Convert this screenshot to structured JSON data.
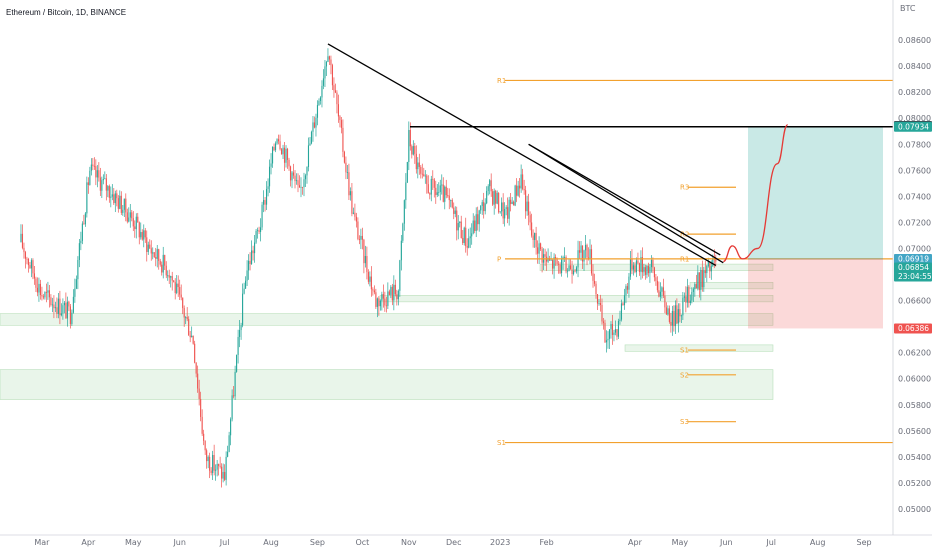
{
  "title": "Ethereum / Bitcoin, 1D, BINANCE",
  "chart_data": {
    "type": "candlestick",
    "title": "Ethereum / Bitcoin, 1D, BINANCE",
    "currency": "BTC",
    "ylim": [
      0.049,
      0.088
    ],
    "y_ticks": [
      "0.08600",
      "0.08400",
      "0.08200",
      "0.08000",
      "0.07800",
      "0.07600",
      "0.07400",
      "0.07200",
      "0.07000",
      "0.06800",
      "0.06600",
      "0.06400",
      "0.06200",
      "0.06000",
      "0.05800",
      "0.05600",
      "0.05400",
      "0.05200",
      "0.05000"
    ],
    "x_ticks": [
      "Mar",
      "Apr",
      "May",
      "Jun",
      "Jul",
      "Aug",
      "Sep",
      "Oct",
      "Nov",
      "Dec",
      "2023",
      "Feb",
      "Apr",
      "May",
      "Jun",
      "Jul",
      "Aug",
      "Sep"
    ],
    "price_path": {
      "dates": [
        "2022-02-15",
        "2022-03-01",
        "2022-03-20",
        "2022-04-02",
        "2022-04-15",
        "2022-05-01",
        "2022-05-12",
        "2022-05-25",
        "2022-06-10",
        "2022-06-18",
        "2022-07-01",
        "2022-07-15",
        "2022-07-25",
        "2022-08-05",
        "2022-08-20",
        "2022-09-01",
        "2022-09-08",
        "2022-09-15",
        "2022-09-25",
        "2022-10-10",
        "2022-10-25",
        "2022-11-01",
        "2022-11-10",
        "2022-11-25",
        "2022-12-10",
        "2022-12-25",
        "2023-01-05",
        "2023-01-15",
        "2023-01-22",
        "2023-02-01",
        "2023-02-15",
        "2023-03-01",
        "2023-03-12",
        "2023-03-20",
        "2023-03-30",
        "2023-04-12",
        "2023-04-20",
        "2023-04-26",
        "2023-05-10",
        "2023-05-25"
      ],
      "close": [
        0.0705,
        0.0665,
        0.065,
        0.076,
        0.0745,
        0.0722,
        0.07,
        0.0683,
        0.063,
        0.054,
        0.0525,
        0.068,
        0.072,
        0.079,
        0.074,
        0.081,
        0.0855,
        0.08,
        0.0725,
        0.066,
        0.0668,
        0.0785,
        0.075,
        0.074,
        0.0705,
        0.0745,
        0.0725,
        0.0755,
        0.071,
        0.069,
        0.0685,
        0.07,
        0.063,
        0.064,
        0.069,
        0.0685,
        0.066,
        0.0645,
        0.067,
        0.069
      ]
    },
    "last_price": "0.06854",
    "countdown": "23:04:55",
    "entry_price": "0.06919",
    "target_price": "0.07934",
    "stop_price": "0.06386",
    "crosshair_price": "0.07939",
    "pivots_major": [
      {
        "label": "R1",
        "value": 0.0829
      },
      {
        "label": "P",
        "value": 0.0692
      },
      {
        "label": "S1",
        "value": 0.0551
      }
    ],
    "pivots_minor": [
      {
        "label": "R3",
        "value": 0.0747
      },
      {
        "label": "R2",
        "value": 0.0711
      },
      {
        "label": "R1",
        "value": 0.0692
      },
      {
        "label": "S1",
        "value": 0.0622
      },
      {
        "label": "S2",
        "value": 0.0603
      },
      {
        "label": "S3",
        "value": 0.0567
      }
    ],
    "zones": [
      {
        "from": 0.0641,
        "to": 0.065
      },
      {
        "from": 0.0584,
        "to": 0.0607
      },
      {
        "from": 0.0659,
        "to": 0.0664
      },
      {
        "from": 0.0683,
        "to": 0.0688
      },
      {
        "from": 0.0669,
        "to": 0.0674
      },
      {
        "from": 0.0621,
        "to": 0.0626
      }
    ],
    "horizontal_resistance": 0.07934,
    "trendlines": [
      {
        "from": [
          "2022-09-08",
          0.0857
        ],
        "to": [
          "2023-05-25",
          0.0687
        ]
      },
      {
        "from": [
          "2023-01-20",
          0.078
        ],
        "to": [
          "2023-05-28",
          0.0695
        ]
      },
      {
        "from": [
          "2023-01-20",
          0.078
        ],
        "to": [
          "2023-05-30",
          0.0689
        ]
      }
    ],
    "projection": {
      "dates": [
        "2023-05-30",
        "2023-06-05",
        "2023-06-12",
        "2023-06-22",
        "2023-07-05",
        "2023-07-12"
      ],
      "values": [
        0.069,
        0.0702,
        0.0692,
        0.07,
        0.0765,
        0.0795
      ]
    },
    "colors": {
      "up": "#26a69a",
      "down": "#ef5350",
      "pivot": "#f2a12e",
      "target_zone": "#26a69a",
      "stop_zone": "#ef5350",
      "zone": "#4caf50",
      "line": "#000000",
      "projection": "#e53935"
    }
  }
}
